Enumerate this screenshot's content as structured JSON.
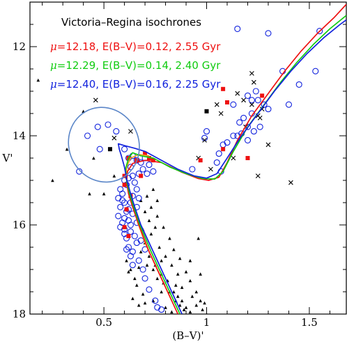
{
  "chart_data": {
    "type": "scatter",
    "title": "Victoria–Regina isochrones",
    "xlabel": "(B–V)'",
    "ylabel": "V'",
    "xlim": [
      0.14,
      1.68
    ],
    "ylim": [
      18,
      11
    ],
    "y_inverted": true,
    "xticks": [
      0.5,
      1,
      1.5
    ],
    "xtick_labels": [
      "0.5",
      "1",
      "1.5"
    ],
    "yticks": [
      12,
      14,
      16,
      18
    ],
    "ytick_labels": [
      "12",
      "14",
      "16",
      "18"
    ],
    "legend_placement": "top-left",
    "colors": {
      "red": "#ee1111",
      "green": "#11cc11",
      "blue": "#1122dd",
      "orange": "#f0a020",
      "ellipse": "#5b86c8"
    },
    "series": [
      {
        "name": "μ=12.18, E(B–V)=0.12, 2.55 Gyr",
        "label_parts": [
          "μ",
          "=12.18, E(B–V)=0.12, 2.55 Gyr"
        ],
        "color": "red",
        "points": [
          [
            0.86,
            18.0
          ],
          [
            0.78,
            17.2
          ],
          [
            0.72,
            16.6
          ],
          [
            0.67,
            16.0
          ],
          [
            0.64,
            15.6
          ],
          [
            0.62,
            15.3
          ],
          [
            0.61,
            15.05
          ],
          [
            0.615,
            14.8
          ],
          [
            0.64,
            14.62
          ],
          [
            0.7,
            14.55
          ],
          [
            0.78,
            14.6
          ],
          [
            0.88,
            14.82
          ],
          [
            0.96,
            14.96
          ],
          [
            1.01,
            15.0
          ],
          [
            1.06,
            14.93
          ],
          [
            1.1,
            14.6
          ],
          [
            1.15,
            14.1
          ],
          [
            1.22,
            13.55
          ],
          [
            1.3,
            13.05
          ],
          [
            1.38,
            12.55
          ],
          [
            1.46,
            12.1
          ],
          [
            1.54,
            11.7
          ],
          [
            1.62,
            11.35
          ],
          [
            1.68,
            11.05
          ]
        ]
      },
      {
        "name": "μ=12.29, E(B–V)=0.14, 2.40 Gyr",
        "label_parts": [
          "μ",
          "=12.29, E(B–V)=0.14, 2.40 Gyr"
        ],
        "color": "green",
        "points": [
          [
            0.87,
            18.0
          ],
          [
            0.79,
            17.2
          ],
          [
            0.73,
            16.6
          ],
          [
            0.675,
            16.0
          ],
          [
            0.645,
            15.6
          ],
          [
            0.625,
            15.3
          ],
          [
            0.612,
            15.05
          ],
          [
            0.605,
            14.75
          ],
          [
            0.62,
            14.5
          ],
          [
            0.64,
            14.38
          ],
          [
            0.68,
            14.45
          ],
          [
            0.74,
            14.5
          ],
          [
            0.82,
            14.7
          ],
          [
            0.9,
            14.85
          ],
          [
            0.98,
            14.96
          ],
          [
            1.04,
            14.97
          ],
          [
            1.08,
            14.8
          ],
          [
            1.13,
            14.35
          ],
          [
            1.2,
            13.8
          ],
          [
            1.28,
            13.3
          ],
          [
            1.36,
            12.8
          ],
          [
            1.44,
            12.35
          ],
          [
            1.52,
            11.95
          ],
          [
            1.6,
            11.6
          ],
          [
            1.68,
            11.3
          ]
        ]
      },
      {
        "name": "μ=12.40, E(B–V)=0.16, 2.25 Gyr",
        "label_parts": [
          "μ",
          "=12.40, E(B–V)=0.16, 2.25 Gyr"
        ],
        "color": "blue",
        "points": [
          [
            0.88,
            18.0
          ],
          [
            0.8,
            17.2
          ],
          [
            0.74,
            16.6
          ],
          [
            0.68,
            16.0
          ],
          [
            0.65,
            15.6
          ],
          [
            0.63,
            15.3
          ],
          [
            0.612,
            15.0
          ],
          [
            0.6,
            14.7
          ],
          [
            0.585,
            14.45
          ],
          [
            0.575,
            14.3
          ],
          [
            0.57,
            14.18
          ],
          [
            0.6,
            14.22
          ],
          [
            0.65,
            14.28
          ],
          [
            0.7,
            14.35
          ],
          [
            0.78,
            14.55
          ],
          [
            0.86,
            14.75
          ],
          [
            0.94,
            14.9
          ],
          [
            1.0,
            14.95
          ],
          [
            1.05,
            14.85
          ],
          [
            1.1,
            14.5
          ],
          [
            1.17,
            14.0
          ],
          [
            1.25,
            13.5
          ],
          [
            1.33,
            13.0
          ],
          [
            1.41,
            12.55
          ],
          [
            1.49,
            12.15
          ],
          [
            1.57,
            11.8
          ],
          [
            1.65,
            11.5
          ],
          [
            1.68,
            11.4
          ]
        ]
      },
      {
        "name": "",
        "color": "orange",
        "points": [
          [
            0.83,
            17.7
          ],
          [
            0.76,
            17.0
          ],
          [
            0.7,
            16.4
          ],
          [
            0.665,
            15.95
          ],
          [
            0.64,
            15.55
          ],
          [
            0.62,
            15.2
          ],
          [
            0.61,
            14.95
          ],
          [
            0.61,
            14.7
          ],
          [
            0.63,
            14.5
          ],
          [
            0.67,
            14.42
          ],
          [
            0.72,
            14.45
          ]
        ]
      }
    ],
    "markers": {
      "open_circles_blue": [
        [
          0.38,
          14.8
        ],
        [
          0.48,
          14.3
        ],
        [
          0.42,
          14.0
        ],
        [
          0.47,
          13.8
        ],
        [
          0.52,
          13.75
        ],
        [
          0.56,
          13.9
        ],
        [
          1.15,
          11.6
        ],
        [
          1.3,
          11.7
        ],
        [
          1.55,
          11.65
        ],
        [
          1.53,
          12.55
        ],
        [
          1.45,
          12.85
        ],
        [
          1.4,
          13.3
        ],
        [
          1.37,
          12.55
        ],
        [
          1.22,
          13.2
        ],
        [
          1.2,
          13.1
        ],
        [
          1.24,
          13.0
        ],
        [
          1.25,
          13.2
        ],
        [
          1.28,
          13.3
        ],
        [
          1.3,
          13.4
        ],
        [
          1.22,
          13.5
        ],
        [
          1.18,
          13.6
        ],
        [
          1.16,
          13.7
        ],
        [
          1.2,
          13.8
        ],
        [
          1.15,
          14.0
        ],
        [
          1.13,
          14.0
        ],
        [
          1.1,
          14.15
        ],
        [
          1.08,
          14.2
        ],
        [
          1.06,
          14.4
        ],
        [
          1.05,
          14.6
        ],
        [
          1.07,
          14.8
        ],
        [
          1.2,
          14.1
        ],
        [
          1.23,
          13.9
        ],
        [
          1.26,
          13.8
        ],
        [
          1.17,
          13.95
        ],
        [
          1.13,
          13.3
        ],
        [
          1.0,
          13.9
        ],
        [
          0.99,
          14.05
        ],
        [
          0.93,
          14.75
        ],
        [
          0.6,
          14.3
        ],
        [
          0.62,
          14.5
        ],
        [
          0.64,
          14.45
        ],
        [
          0.66,
          14.55
        ],
        [
          0.68,
          14.6
        ],
        [
          0.7,
          14.5
        ],
        [
          0.72,
          14.65
        ],
        [
          0.74,
          14.8
        ],
        [
          0.67,
          14.85
        ],
        [
          0.64,
          14.9
        ],
        [
          0.6,
          15.0
        ],
        [
          0.58,
          15.2
        ],
        [
          0.57,
          15.4
        ],
        [
          0.58,
          15.6
        ],
        [
          0.57,
          15.8
        ],
        [
          0.59,
          15.95
        ],
        [
          0.6,
          16.1
        ],
        [
          0.61,
          16.3
        ],
        [
          0.62,
          16.5
        ],
        [
          0.63,
          16.7
        ],
        [
          0.64,
          16.9
        ],
        [
          0.6,
          15.5
        ],
        [
          0.61,
          15.7
        ],
        [
          0.62,
          15.9
        ],
        [
          0.63,
          16.0
        ],
        [
          0.59,
          15.3
        ],
        [
          0.61,
          15.1
        ],
        [
          0.62,
          14.95
        ],
        [
          0.65,
          15.05
        ],
        [
          0.66,
          15.2
        ],
        [
          0.67,
          15.4
        ],
        [
          0.66,
          15.6
        ],
        [
          0.64,
          15.75
        ],
        [
          0.62,
          15.65
        ],
        [
          0.6,
          15.85
        ],
        [
          0.58,
          16.05
        ],
        [
          0.61,
          16.55
        ],
        [
          0.65,
          16.25
        ],
        [
          0.67,
          16.8
        ],
        [
          0.69,
          17.0
        ],
        [
          0.7,
          17.2
        ],
        [
          0.72,
          17.45
        ],
        [
          0.75,
          17.7
        ],
        [
          0.78,
          17.9
        ],
        [
          0.76,
          17.85
        ],
        [
          0.7,
          16.55
        ],
        [
          0.68,
          16.35
        ],
        [
          0.66,
          15.95
        ],
        [
          0.64,
          15.35
        ],
        [
          0.63,
          14.7
        ],
        [
          0.69,
          14.75
        ],
        [
          0.71,
          14.85
        ],
        [
          0.63,
          15.5
        ],
        [
          0.59,
          15.45
        ],
        [
          0.6,
          16.2
        ],
        [
          0.63,
          16.15
        ],
        [
          0.64,
          16.6
        ],
        [
          0.66,
          16.4
        ]
      ],
      "red_squares": [
        [
          1.08,
          12.95
        ],
        [
          1.1,
          13.25
        ],
        [
          1.08,
          14.3
        ],
        [
          0.97,
          14.55
        ],
        [
          0.68,
          14.9
        ],
        [
          0.66,
          14.55
        ],
        [
          0.72,
          14.5
        ],
        [
          0.7,
          14.4
        ],
        [
          0.74,
          14.55
        ],
        [
          0.62,
          14.5
        ],
        [
          0.6,
          15.1
        ],
        [
          0.61,
          15.65
        ],
        [
          0.6,
          16.05
        ],
        [
          0.62,
          16.25
        ],
        [
          0.63,
          15.35
        ],
        [
          0.6,
          14.9
        ],
        [
          1.2,
          14.5
        ],
        [
          1.27,
          13.1
        ]
      ],
      "black_squares": [
        [
          1.0,
          13.45
        ],
        [
          0.53,
          14.3
        ]
      ],
      "crosses": [
        [
          0.46,
          13.2
        ],
        [
          0.55,
          14.05
        ],
        [
          0.63,
          13.9
        ],
        [
          0.99,
          14.1
        ],
        [
          1.02,
          14.75
        ],
        [
          1.07,
          13.5
        ],
        [
          1.05,
          13.3
        ],
        [
          1.15,
          13.05
        ],
        [
          1.18,
          13.2
        ],
        [
          1.22,
          13.3
        ],
        [
          1.27,
          13.4
        ],
        [
          1.22,
          12.6
        ],
        [
          1.26,
          13.6
        ],
        [
          1.19,
          13.8
        ],
        [
          1.3,
          14.2
        ],
        [
          1.13,
          14.5
        ],
        [
          1.25,
          14.9
        ],
        [
          1.41,
          15.05
        ],
        [
          0.96,
          14.5
        ],
        [
          1.23,
          12.8
        ],
        [
          1.25,
          13.55
        ]
      ],
      "triangles": [
        [
          0.18,
          12.75
        ],
        [
          0.4,
          13.45
        ],
        [
          0.32,
          14.3
        ],
        [
          0.25,
          15.0
        ],
        [
          0.43,
          15.3
        ],
        [
          0.5,
          15.3
        ],
        [
          0.45,
          14.5
        ],
        [
          0.55,
          14.9
        ],
        [
          0.68,
          16.6
        ],
        [
          0.71,
          16.9
        ],
        [
          0.74,
          17.0
        ],
        [
          0.76,
          17.2
        ],
        [
          0.79,
          17.3
        ],
        [
          0.82,
          17.5
        ],
        [
          0.85,
          17.7
        ],
        [
          0.87,
          17.8
        ],
        [
          0.89,
          17.9
        ],
        [
          0.7,
          16.4
        ],
        [
          0.72,
          16.7
        ],
        [
          0.75,
          16.9
        ],
        [
          0.78,
          17.1
        ],
        [
          0.81,
          17.25
        ],
        [
          0.84,
          17.5
        ],
        [
          0.86,
          17.6
        ],
        [
          0.88,
          17.7
        ],
        [
          0.9,
          17.85
        ],
        [
          0.92,
          17.95
        ],
        [
          0.66,
          17.35
        ],
        [
          0.69,
          17.55
        ],
        [
          0.74,
          17.7
        ],
        [
          0.78,
          17.5
        ],
        [
          0.73,
          16.2
        ],
        [
          0.77,
          16.5
        ],
        [
          0.8,
          16.7
        ],
        [
          0.83,
          16.9
        ],
        [
          0.86,
          17.1
        ],
        [
          0.88,
          17.4
        ],
        [
          0.93,
          17.6
        ],
        [
          0.95,
          17.8
        ],
        [
          0.98,
          17.9
        ],
        [
          0.75,
          16.05
        ],
        [
          0.69,
          16.1
        ],
        [
          0.72,
          15.9
        ],
        [
          0.7,
          15.7
        ],
        [
          0.73,
          15.6
        ],
        [
          0.76,
          15.8
        ],
        [
          0.79,
          16.05
        ],
        [
          0.82,
          16.3
        ],
        [
          0.84,
          16.55
        ],
        [
          0.87,
          16.75
        ],
        [
          0.9,
          17.05
        ],
        [
          0.92,
          17.25
        ],
        [
          0.95,
          17.5
        ],
        [
          0.97,
          17.7
        ],
        [
          0.99,
          17.75
        ],
        [
          1.0,
          18.0
        ],
        [
          0.97,
          17.1
        ],
        [
          0.68,
          15.45
        ],
        [
          0.71,
          15.35
        ],
        [
          0.74,
          15.2
        ],
        [
          0.76,
          15.45
        ],
        [
          0.67,
          17.8
        ],
        [
          0.64,
          17.65
        ],
        [
          0.65,
          17.2
        ],
        [
          0.63,
          17.0
        ],
        [
          0.7,
          17.75
        ],
        [
          0.8,
          17.85
        ],
        [
          0.83,
          17.95
        ],
        [
          0.61,
          16.8
        ],
        [
          0.62,
          17.05
        ],
        [
          0.67,
          16.95
        ],
        [
          0.92,
          16.8
        ],
        [
          0.96,
          16.3
        ],
        [
          0.85,
          17.35
        ],
        [
          0.78,
          16.8
        ]
      ]
    },
    "ellipse": {
      "cx": 0.5,
      "cy": 14.2,
      "rx": 0.17,
      "ry": 0.85,
      "rotation": -25
    }
  }
}
